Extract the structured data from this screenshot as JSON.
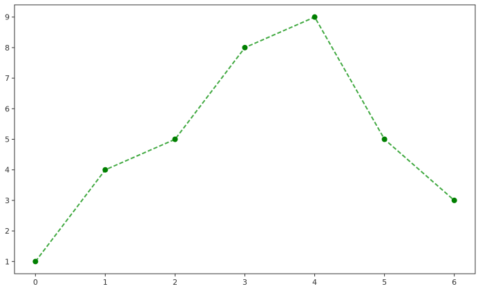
{
  "chart_data": {
    "type": "line",
    "title": "",
    "xlabel": "",
    "ylabel": "",
    "x": [
      0,
      1,
      2,
      3,
      4,
      5,
      6
    ],
    "series": [
      {
        "values": [
          1,
          4,
          5,
          8,
          9,
          5,
          3
        ],
        "line_style": "dashed",
        "marker": "circle",
        "line_color": "#2ca02c",
        "marker_color": "#007f00"
      }
    ],
    "xlim": [
      -0.3,
      6.3
    ],
    "ylim": [
      0.6,
      9.4
    ],
    "xticks": [
      "0",
      "1",
      "2",
      "3",
      "4",
      "5",
      "6"
    ],
    "yticks": [
      "1",
      "2",
      "3",
      "4",
      "5",
      "6",
      "7",
      "8",
      "9"
    ],
    "grid": false
  }
}
